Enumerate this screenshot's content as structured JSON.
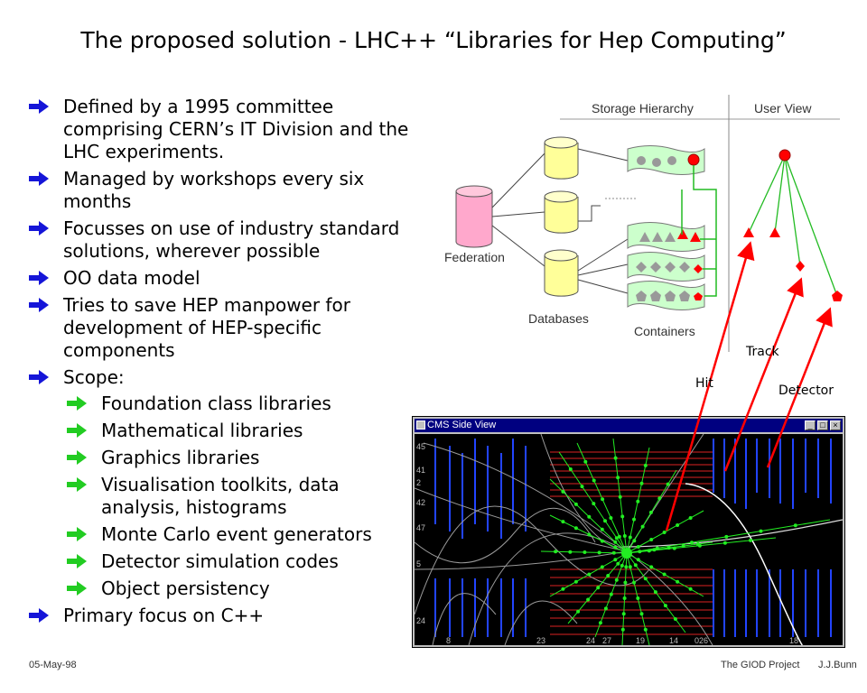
{
  "slide": {
    "title": "The proposed solution - LHC++ “Libraries for Hep Computing”",
    "bullets": [
      "Defined by a 1995 committee comprising CERN’s IT Division and the LHC experiments.",
      "Managed by workshops every six months",
      "Focusses on use of industry standard solutions, wherever possible",
      "OO data model",
      "Tries to save HEP manpower for development of HEP-specific components",
      "Scope:",
      "Primary focus on C++"
    ],
    "scope_items": [
      "Foundation class libraries",
      "Mathematical libraries",
      "Graphics libraries",
      "Visualisation toolkits, data analysis, histograms",
      "Monte Carlo event generators",
      "Detector simulation codes",
      "Object persistency"
    ],
    "colors": {
      "arrow_blue": "#1515d8",
      "arrow_green": "#22cc22",
      "track_red": "#ff0000"
    }
  },
  "diagram": {
    "storage_hierarchy": "Storage Hierarchy",
    "user_view": "User View",
    "federation": "Federation",
    "databases": "Databases",
    "containers": "Containers",
    "track": "Track",
    "hit": "Hit",
    "detector": "Detector"
  },
  "window": {
    "title": "CMS Side View",
    "axis_numbers": [
      "45",
      "41",
      "2",
      "42",
      "47",
      "5",
      "24",
      "8",
      "23",
      "24",
      "27",
      "19",
      "14",
      "026",
      "18"
    ]
  },
  "footer": {
    "date": "05-May-98",
    "project": "The GIOD Project",
    "author": "J.J.Bunn"
  }
}
